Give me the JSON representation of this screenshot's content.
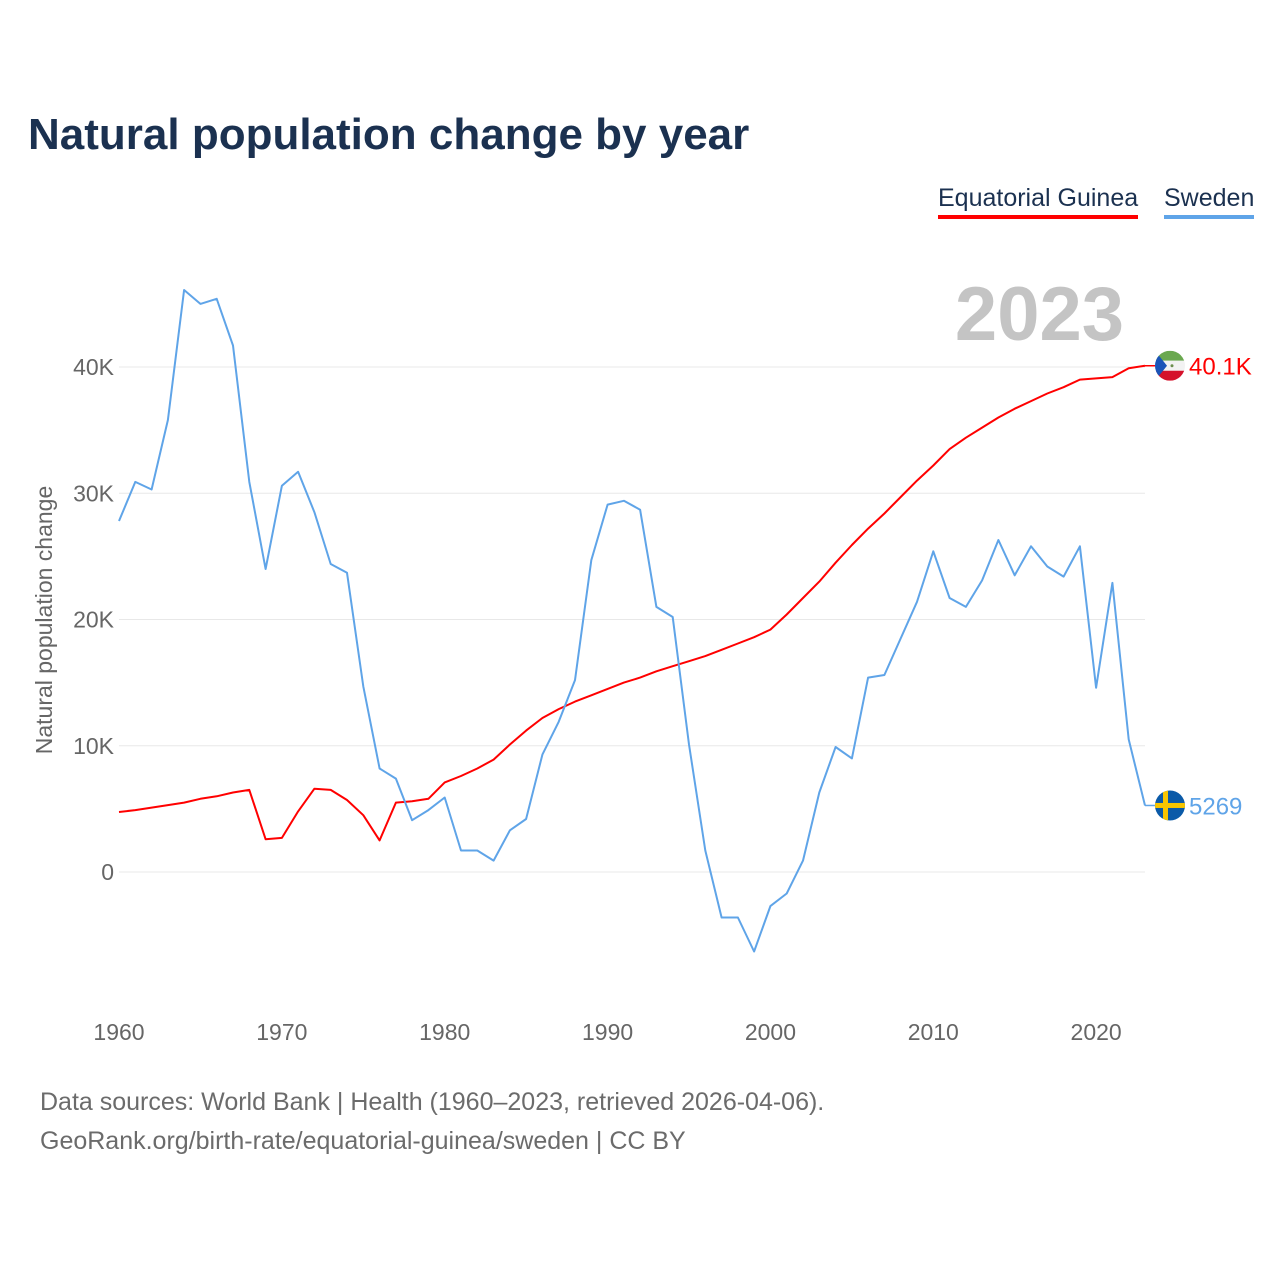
{
  "chart_data": {
    "type": "line",
    "title": "Natural population change by year",
    "xlabel": "",
    "ylabel": "Natural population change",
    "xlim": [
      1960,
      2023
    ],
    "ylim": [
      -8000,
      47000
    ],
    "x_ticks": [
      1960,
      1970,
      1980,
      1990,
      2000,
      2010,
      2020
    ],
    "y_ticks": [
      0,
      10000,
      20000,
      30000,
      40000
    ],
    "y_tick_labels": [
      "0",
      "10K",
      "20K",
      "30K",
      "40K"
    ],
    "grid": true,
    "legend_position": "top-right",
    "year_label": "2023",
    "x": [
      1960,
      1961,
      1962,
      1963,
      1964,
      1965,
      1966,
      1967,
      1968,
      1969,
      1970,
      1971,
      1972,
      1973,
      1974,
      1975,
      1976,
      1977,
      1978,
      1979,
      1980,
      1981,
      1982,
      1983,
      1984,
      1985,
      1986,
      1987,
      1988,
      1989,
      1990,
      1991,
      1992,
      1993,
      1994,
      1995,
      1996,
      1997,
      1998,
      1999,
      2000,
      2001,
      2002,
      2003,
      2004,
      2005,
      2006,
      2007,
      2008,
      2009,
      2010,
      2011,
      2012,
      2013,
      2014,
      2015,
      2016,
      2017,
      2018,
      2019,
      2020,
      2021,
      2022,
      2023
    ],
    "series": [
      {
        "name": "Equatorial Guinea",
        "color": "#ff0000",
        "end_label": "40.1K",
        "values": [
          4750,
          4900,
          5100,
          5300,
          5500,
          5800,
          6000,
          6300,
          6500,
          2600,
          2700,
          4800,
          6600,
          6500,
          5700,
          4500,
          2500,
          5500,
          5600,
          5800,
          7100,
          7600,
          8200,
          8900,
          10100,
          11200,
          12200,
          12900,
          13500,
          14000,
          14500,
          15000,
          15400,
          15900,
          16300,
          16700,
          17100,
          17600,
          18100,
          18600,
          19200,
          20400,
          21700,
          23000,
          24500,
          25900,
          27200,
          28400,
          29700,
          31000,
          32200,
          33500,
          34400,
          35200,
          36000,
          36700,
          37300,
          37900,
          38400,
          39000,
          39100,
          39200,
          39900,
          40100
        ]
      },
      {
        "name": "Sweden",
        "color": "#5fa4e8",
        "end_label": "5269",
        "values": [
          27800,
          30900,
          30300,
          35800,
          46100,
          45000,
          45400,
          41700,
          30900,
          24000,
          30600,
          31700,
          28500,
          24400,
          23700,
          14700,
          8200,
          7400,
          4100,
          4900,
          5900,
          1700,
          1700,
          900,
          3300,
          4200,
          9300,
          11900,
          15200,
          24700,
          29100,
          29400,
          28700,
          21000,
          20200,
          10100,
          1700,
          -3600,
          -3600,
          -6300,
          -2700,
          -1700,
          900,
          6300,
          9900,
          9000,
          15400,
          15600,
          18500,
          21400,
          25400,
          21700,
          21000,
          23100,
          26300,
          23500,
          25800,
          24200,
          23400,
          25800,
          14600,
          22900,
          10500,
          5269
        ]
      }
    ]
  },
  "footer": {
    "line1": "Data sources: World Bank | Health (1960–2023, retrieved 2026-04-06).",
    "line2": "GeoRank.org/birth-rate/equatorial-guinea/sweden | CC BY"
  }
}
